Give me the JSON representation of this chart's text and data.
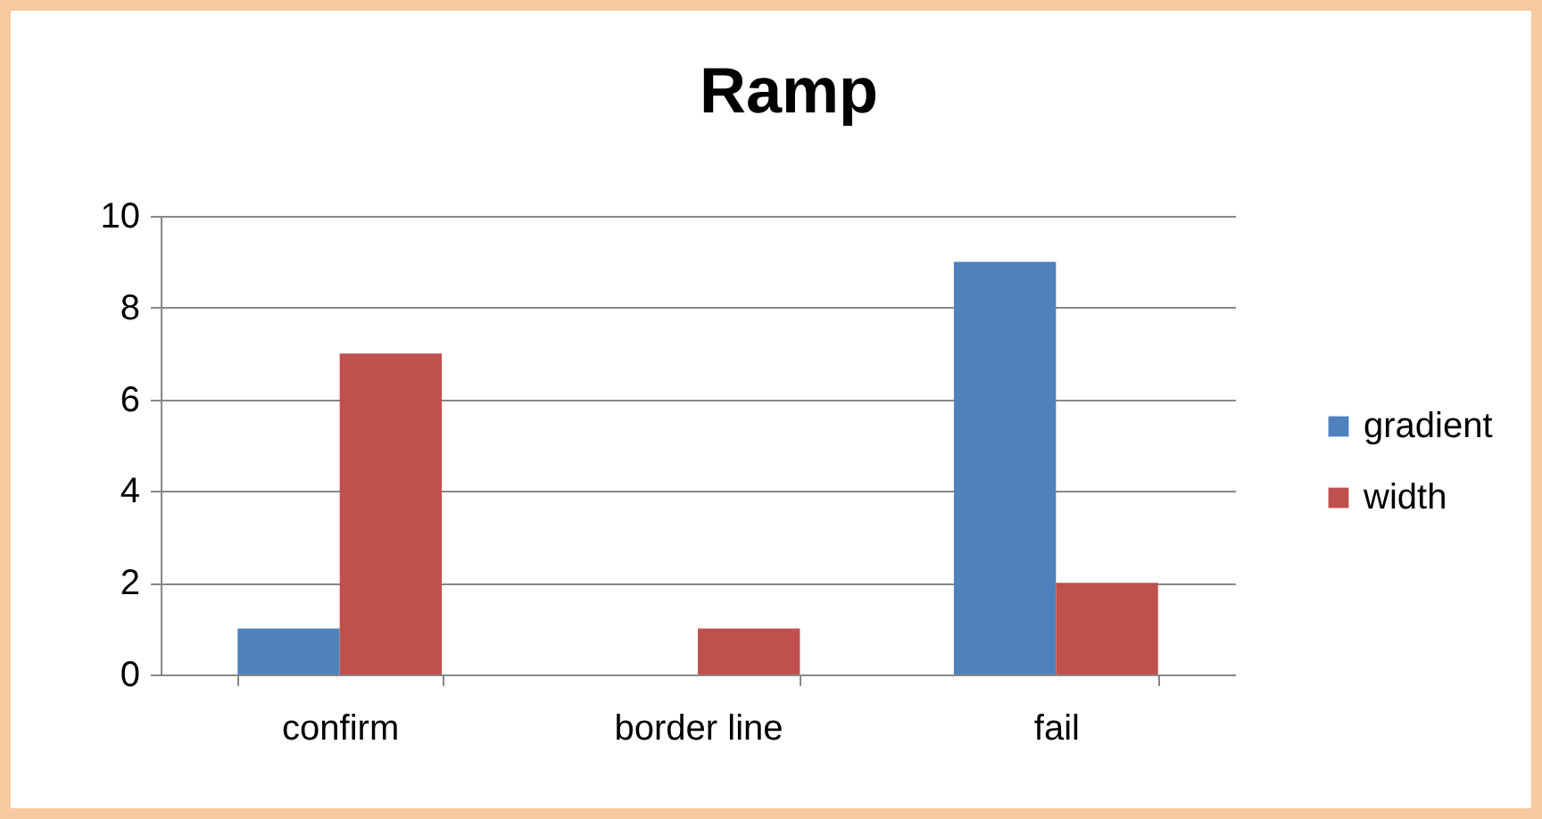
{
  "chart_data": {
    "type": "bar",
    "title": "Ramp",
    "categories": [
      "confirm",
      "border line",
      "fail"
    ],
    "series": [
      {
        "name": "gradient",
        "color": "#4f81bd",
        "values": [
          1,
          0,
          9
        ]
      },
      {
        "name": "width",
        "color": "#c0504d",
        "values": [
          7,
          1,
          2
        ]
      }
    ],
    "ylim": [
      0,
      10
    ],
    "yticks": [
      0,
      2,
      4,
      6,
      8,
      10
    ],
    "grid": "y",
    "legend": "right"
  }
}
